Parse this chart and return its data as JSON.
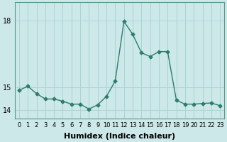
{
  "x": [
    0,
    1,
    2,
    3,
    4,
    5,
    6,
    7,
    8,
    9,
    10,
    11,
    12,
    13,
    14,
    15,
    16,
    17,
    18,
    19,
    20,
    21,
    22,
    23
  ],
  "y": [
    14.87,
    15.05,
    14.72,
    14.48,
    14.48,
    14.38,
    14.25,
    14.25,
    14.03,
    14.22,
    14.6,
    15.28,
    17.95,
    17.38,
    16.55,
    16.38,
    16.6,
    16.6,
    14.42,
    14.25,
    14.25,
    14.28,
    14.3,
    14.18
  ],
  "line_color": "#2d7d6d",
  "marker": "D",
  "marker_size": 2.5,
  "bg_color": "#cce8e8",
  "grid_color": "#aad4d4",
  "xlabel": "Humidex (Indice chaleur)",
  "yticks": [
    14,
    15,
    18
  ],
  "ylim": [
    13.6,
    18.8
  ],
  "xlim": [
    -0.5,
    23.5
  ],
  "xlabel_fontsize": 8,
  "tick_fontsize": 7,
  "linewidth": 1.0
}
